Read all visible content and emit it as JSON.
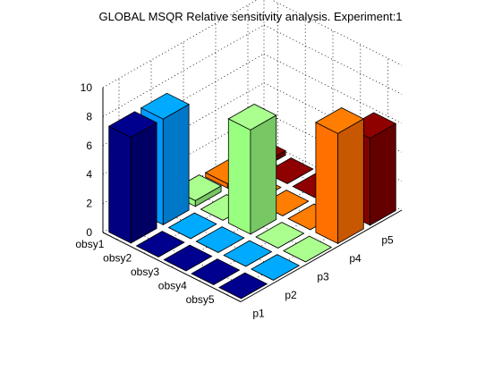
{
  "chart_data": {
    "type": "bar3",
    "title": "GLOBAL MSQR Relative sensitivity analysis. Experiment:1",
    "zlabel": "",
    "xlabel": "",
    "ylabel": "",
    "zlim": [
      0,
      10
    ],
    "z_ticks": [
      "0",
      "2",
      "4",
      "6",
      "8",
      "10"
    ],
    "parameters": [
      "p1",
      "p2",
      "p3",
      "p4",
      "p5"
    ],
    "observables": [
      "obsy1",
      "obsy2",
      "obsy3",
      "obsy4",
      "obsy5"
    ],
    "grid": true,
    "values": [
      [
        7.3,
        7.3,
        0.4,
        0.3,
        0.3
      ],
      [
        0.0,
        0.0,
        0.0,
        0.0,
        0.0
      ],
      [
        0.0,
        0.0,
        7.2,
        0.0,
        0.0
      ],
      [
        0.0,
        0.0,
        0.0,
        0.0,
        0.0
      ],
      [
        0.0,
        0.0,
        0.0,
        7.6,
        6.0
      ]
    ],
    "colors": [
      "#000080",
      "#0099ff",
      "#99ff80",
      "#ff7000",
      "#800000"
    ]
  }
}
